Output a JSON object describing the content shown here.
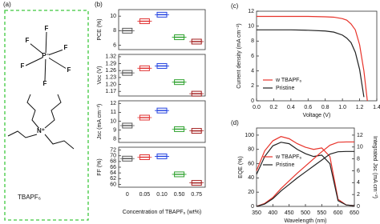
{
  "panel_a": {
    "label": "(a)",
    "atoms": [
      "F",
      "F",
      "F",
      "F",
      "F",
      "F",
      "P⁻",
      "N⁺"
    ],
    "caption": "TBAPF₆"
  },
  "chart_data": [
    {
      "type": "box",
      "panel_label": "(b)",
      "ylabel": "PCE (%)",
      "values": [
        8.0,
        9.3,
        10.2,
        7.1,
        6.5
      ],
      "colors": [
        "#555555",
        "#e03030",
        "#2040e0",
        "#2aa02a",
        "#a01818"
      ],
      "ylim": [
        5.4,
        10.9
      ],
      "yticks": [
        6,
        8,
        10
      ]
    },
    {
      "type": "box",
      "ylabel": "Voc (V)",
      "values": [
        1.25,
        1.27,
        1.28,
        1.21,
        1.16
      ],
      "colors": [
        "#555555",
        "#e03030",
        "#2040e0",
        "#2aa02a",
        "#a01818"
      ],
      "ylim": [
        1.15,
        1.33
      ],
      "yticks": [
        1.17,
        {
          "value": 1.2,
          "label": "1.20"
        },
        1.23,
        1.26,
        1.29,
        1.32
      ]
    },
    {
      "type": "box",
      "ylabel": "Jsc (mA cm⁻²)",
      "values": [
        9.5,
        10.4,
        11.2,
        9.1,
        8.9
      ],
      "colors": [
        "#555555",
        "#e03030",
        "#2040e0",
        "#2aa02a",
        "#a01818"
      ],
      "ylim": [
        7.6,
        12.3
      ],
      "yticks": [
        8,
        9,
        10,
        11,
        12
      ]
    },
    {
      "type": "box",
      "ylabel": "FF (%)",
      "xlabel": "Concentration of TBAPF₆ (wt%)",
      "categories": [
        "0",
        "0.05",
        "0.10",
        "0.50",
        "0.75"
      ],
      "values": [
        69.0,
        69.5,
        69.8,
        63.5,
        60.5
      ],
      "colors": [
        "#555555",
        "#e03030",
        "#2040e0",
        "#2aa02a",
        "#a01818"
      ],
      "ylim": [
        59,
        73
      ],
      "yticks": [
        60,
        62,
        64,
        66,
        68,
        70,
        72
      ]
    },
    {
      "type": "line",
      "panel_label": "(c)",
      "xlabel": "Voltage (V)",
      "ylabel": "Current density (mA cm⁻²)",
      "x": [
        0,
        0.2,
        0.4,
        0.6,
        0.8,
        0.9,
        1.0,
        1.05,
        1.1,
        1.15,
        1.2,
        1.25,
        1.29
      ],
      "series": [
        {
          "name": "w TBAPF₆",
          "color": "#e8332a",
          "values": [
            11.3,
            11.3,
            11.3,
            11.3,
            11.25,
            11.2,
            11.0,
            10.8,
            10.3,
            9.5,
            7.5,
            4.0,
            0
          ]
        },
        {
          "name": "Pristine",
          "color": "#222222",
          "values": [
            9.5,
            9.5,
            9.5,
            9.45,
            9.35,
            9.2,
            8.8,
            8.4,
            7.8,
            6.5,
            4.2,
            0.5,
            null
          ]
        }
      ],
      "xlim": [
        0,
        1.4
      ],
      "xticks": [
        {
          "value": 0,
          "label": "0.0"
        },
        0.2,
        0.4,
        0.6,
        0.8,
        {
          "value": 1,
          "label": "1.0"
        },
        1.2,
        1.4
      ],
      "ylim": [
        0,
        12
      ],
      "yticks": [
        0,
        2,
        4,
        6,
        8,
        10,
        12
      ]
    },
    {
      "type": "line",
      "panel_label": "(d)",
      "xlabel": "Wavelength (nm)",
      "ylabel": "EQE (%)",
      "y2label": "Integrated Jsc (mA cm⁻²)",
      "x": [
        350,
        375,
        400,
        425,
        450,
        475,
        500,
        525,
        550,
        575,
        600,
        625,
        650
      ],
      "series": [
        {
          "name": "w TBAPF₆",
          "color": "#e8332a",
          "values": [
            50,
            78,
            92,
            98,
            95,
            88,
            83,
            80,
            82,
            70,
            10,
            2,
            1
          ]
        },
        {
          "name": "Pristine",
          "color": "#222222",
          "values": [
            45,
            70,
            85,
            90,
            88,
            80,
            74,
            70,
            72,
            60,
            8,
            2,
            1
          ]
        },
        {
          "axis": "y2",
          "color": "#e8332a",
          "values": [
            0,
            0.5,
            1.5,
            3.0,
            4.3,
            5.6,
            6.8,
            8.0,
            9.2,
            10.3,
            10.8,
            10.85,
            10.85
          ]
        },
        {
          "axis": "y2",
          "color": "#222222",
          "values": [
            0,
            0.4,
            1.3,
            2.6,
            3.7,
            4.8,
            5.8,
            6.8,
            7.8,
            8.8,
            9.2,
            9.25,
            9.25
          ]
        }
      ],
      "xlim": [
        350,
        650
      ],
      "xticks": [
        350,
        400,
        450,
        500,
        550,
        600,
        650
      ],
      "ylim": [
        0,
        110
      ],
      "yticks": [
        0,
        20,
        40,
        60,
        80,
        100
      ],
      "y2lim": [
        0,
        13.2
      ],
      "y2ticks": [
        0,
        2,
        4,
        6,
        8,
        10,
        12
      ]
    }
  ]
}
